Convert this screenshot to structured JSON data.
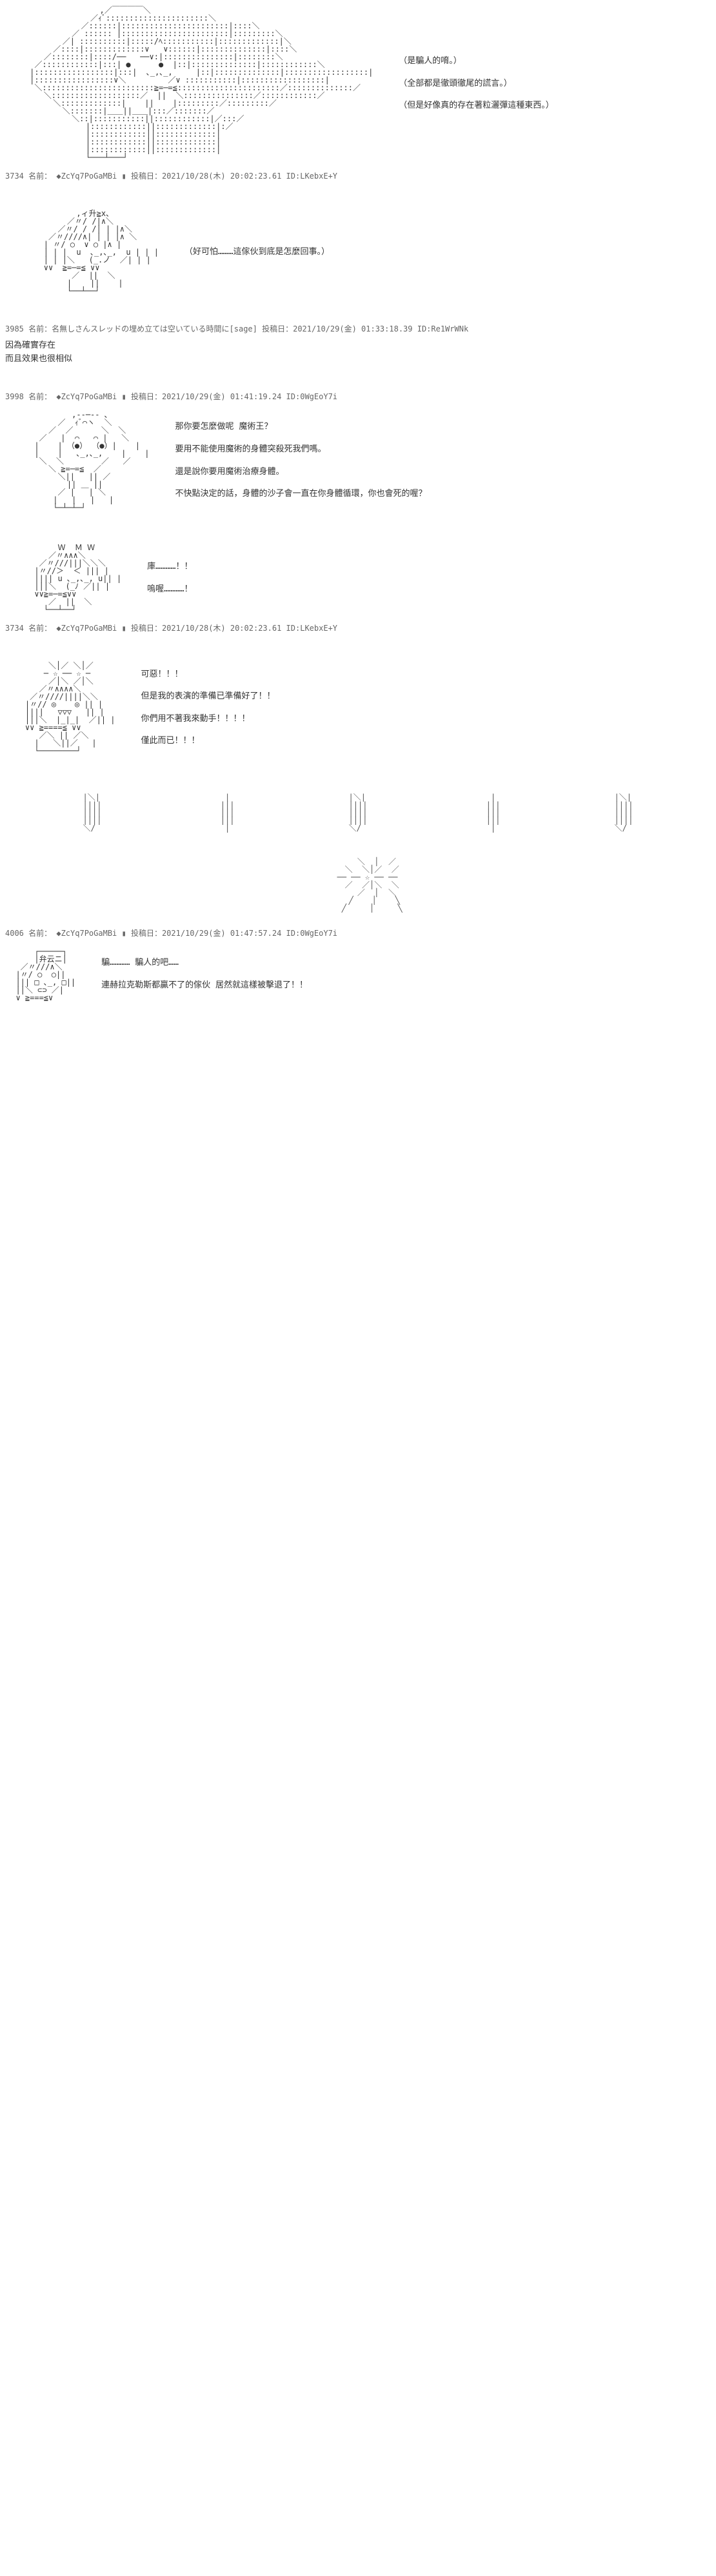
{
  "posts": [
    {
      "header": "3734 名前： ◆ZcYq7PoGaMBi ▮ 投稿日：2021/10/28(木) 20:02:23.61 ID:LKebxE+Y",
      "dialogue": [
        "（是騙人的唷。）",
        "（全部都是徹頭徹尾的謊言。）",
        "（但是好像真的存在著粒灑彈這種東西。）"
      ]
    },
    {
      "dialogue": [
        "（好可怕………這傢伙到底是怎麼回事。）"
      ]
    },
    {
      "header": "3985 名前：名無しさんスレッドの埋め立ては空いている時間に[sage] 投稿日：2021/10/29(金) 01:33:18.39 ID:Re1WrWNk",
      "comment": [
        "因為確實存在",
        "而且效果也很相似"
      ]
    },
    {
      "header": "3998 名前： ◆ZcYq7PoGaMBi ▮ 投稿日：2021/10/29(金) 01:41:19.24 ID:0WgEoY7i",
      "dialogue": [
        "那你要怎麼做呢 魔術王？",
        "要用不能使用魔術的身體突殺死我們嗎。",
        "還是說你要用魔術治療身體。",
        "不快點決定的話，身體的沙子會一直在你身體循環，你也會死的喔？"
      ]
    },
    {
      "dialogue": [
        "庫…………！！",
        "嗚喔…………！"
      ]
    },
    {
      "header": "3734 名前： ◆ZcYq7PoGaMBi ▮ 投稿日：2021/10/28(木) 20:02:23.61 ID:LKebxE+Y",
      "dialogue": [
        "可惡！！！",
        "但是我的表演的準備已準備好了！！",
        "你們用不著我來動手！！！！",
        "僅此而已！！！"
      ]
    },
    {
      "header": "4006 名前： ◆ZcYq7PoGaMBi ▮ 投稿日：2021/10/29(金) 01:47:57.24 ID:0WgEoY7i",
      "dialogue": [
        "騙………… 騙人的吧……",
        "連赫拉克勒斯都贏不了的傢伙 居然就這樣被擊退了！！"
      ]
    }
  ],
  "aa_placeholder_note": "ASCII art portraits - simplified representations",
  "colors": {
    "bg": "#ffffff",
    "text": "#333333",
    "meta": "#666666",
    "name": "#228B22"
  }
}
